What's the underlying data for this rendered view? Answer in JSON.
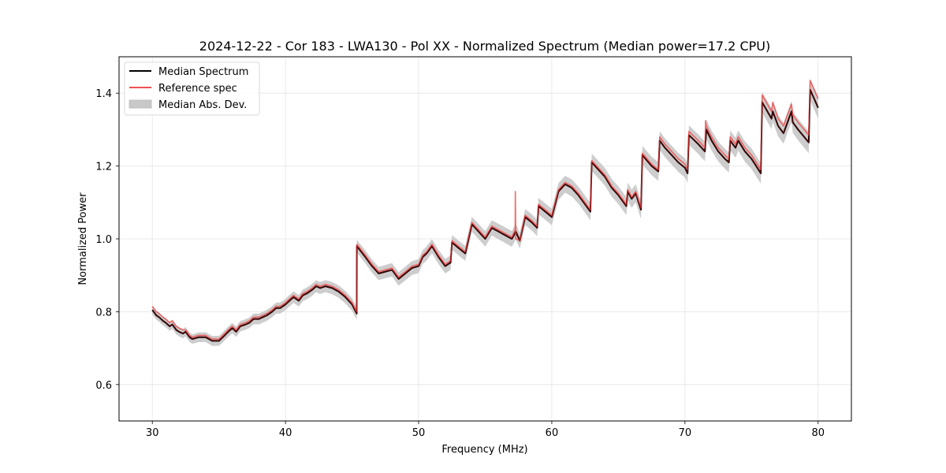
{
  "chart_data": {
    "type": "line",
    "title": "2024-12-22 - Cor 183 - LWA130 - Pol XX - Normalized Spectrum (Median power=17.2 CPU)",
    "xlabel": "Frequency (MHz)",
    "ylabel": "Normalized Power",
    "xlim": [
      27.5,
      82.5
    ],
    "ylim": [
      0.5,
      1.5
    ],
    "xticks": [
      30,
      40,
      50,
      60,
      70,
      80
    ],
    "xtick_labels": [
      "30",
      "40",
      "50",
      "60",
      "70",
      "80"
    ],
    "yticks": [
      0.6,
      0.8,
      1.0,
      1.2,
      1.4
    ],
    "ytick_labels": [
      "0.6",
      "0.8",
      "1.0",
      "1.2",
      "1.4"
    ],
    "grid": true,
    "legend_position": "top-left",
    "legend": [
      {
        "label": "Median Spectrum",
        "kind": "line",
        "color": "#000000"
      },
      {
        "label": "Reference spec",
        "kind": "line",
        "color": "#f05050"
      },
      {
        "label": "Median Abs. Dev.",
        "kind": "band",
        "color": "#c8c8c8"
      }
    ],
    "series": [
      {
        "name": "Median Spectrum",
        "color": "#000000",
        "x": [
          30.0,
          30.3,
          30.5,
          30.8,
          31.0,
          31.3,
          31.5,
          31.8,
          32.0,
          32.3,
          32.5,
          32.8,
          33.0,
          33.5,
          34.0,
          34.5,
          34.8,
          35.0,
          35.3,
          35.7,
          36.0,
          36.3,
          36.6,
          37.0,
          37.3,
          37.6,
          38.0,
          38.3,
          38.6,
          39.0,
          39.3,
          39.6,
          40.0,
          40.3,
          40.6,
          41.0,
          41.3,
          41.6,
          42.0,
          42.3,
          42.6,
          43.0,
          43.5,
          44.0,
          44.5,
          45.0,
          45.35,
          45.36,
          46.0,
          46.5,
          47.0,
          47.5,
          48.0,
          48.5,
          49.0,
          49.5,
          50.0,
          50.3,
          50.6,
          51.0,
          51.5,
          52.0,
          52.4,
          52.5,
          53.0,
          53.5,
          54.0,
          54.5,
          55.0,
          55.5,
          56.0,
          56.5,
          57.0,
          57.3,
          57.6,
          58.0,
          58.5,
          58.9,
          59.0,
          59.5,
          60.0,
          60.5,
          61.0,
          61.5,
          62.0,
          62.9,
          63.0,
          63.5,
          64.0,
          64.5,
          65.0,
          65.6,
          65.7,
          66.0,
          66.3,
          66.7,
          66.8,
          67.5,
          68.0,
          68.1,
          68.5,
          69.0,
          69.5,
          70.0,
          70.2,
          70.3,
          71.0,
          71.5,
          71.6,
          72.0,
          72.5,
          73.0,
          73.3,
          73.4,
          73.8,
          74.0,
          74.5,
          75.0,
          75.7,
          75.8,
          76.5,
          76.6,
          77.0,
          77.4,
          78.0,
          78.1,
          78.5,
          79.3,
          79.4,
          80.0
        ],
        "y": [
          0.805,
          0.79,
          0.785,
          0.775,
          0.77,
          0.76,
          0.765,
          0.75,
          0.745,
          0.74,
          0.745,
          0.73,
          0.725,
          0.73,
          0.73,
          0.72,
          0.72,
          0.72,
          0.73,
          0.745,
          0.755,
          0.745,
          0.76,
          0.765,
          0.77,
          0.78,
          0.78,
          0.785,
          0.79,
          0.8,
          0.81,
          0.81,
          0.82,
          0.83,
          0.84,
          0.83,
          0.845,
          0.85,
          0.86,
          0.87,
          0.865,
          0.87,
          0.865,
          0.855,
          0.84,
          0.82,
          0.795,
          0.98,
          0.95,
          0.925,
          0.905,
          0.91,
          0.915,
          0.89,
          0.905,
          0.92,
          0.925,
          0.95,
          0.96,
          0.98,
          0.95,
          0.925,
          0.935,
          0.99,
          0.975,
          0.96,
          1.04,
          1.02,
          1.0,
          1.03,
          1.02,
          1.01,
          1.0,
          1.02,
          0.995,
          1.06,
          1.045,
          1.03,
          1.09,
          1.075,
          1.06,
          1.13,
          1.15,
          1.14,
          1.12,
          1.075,
          1.21,
          1.19,
          1.17,
          1.14,
          1.12,
          1.09,
          1.13,
          1.11,
          1.125,
          1.08,
          1.23,
          1.2,
          1.185,
          1.27,
          1.25,
          1.23,
          1.21,
          1.195,
          1.18,
          1.285,
          1.26,
          1.24,
          1.3,
          1.27,
          1.24,
          1.22,
          1.21,
          1.27,
          1.25,
          1.27,
          1.24,
          1.22,
          1.18,
          1.375,
          1.33,
          1.35,
          1.31,
          1.29,
          1.35,
          1.32,
          1.3,
          1.265,
          1.41,
          1.36
        ]
      },
      {
        "name": "Reference spec",
        "color": "#f05050",
        "x": [
          30.0,
          30.3,
          30.5,
          30.8,
          31.0,
          31.3,
          31.5,
          31.8,
          32.0,
          32.3,
          32.5,
          32.8,
          33.0,
          33.5,
          34.0,
          34.5,
          34.8,
          35.0,
          35.3,
          35.7,
          36.0,
          36.3,
          36.6,
          37.0,
          37.3,
          37.6,
          38.0,
          38.3,
          38.6,
          39.0,
          39.3,
          39.6,
          40.0,
          40.3,
          40.6,
          41.0,
          41.3,
          41.6,
          42.0,
          42.3,
          42.6,
          43.0,
          43.5,
          44.0,
          44.5,
          45.0,
          45.35,
          45.36,
          46.0,
          46.5,
          47.0,
          47.5,
          48.0,
          48.5,
          49.0,
          49.5,
          50.0,
          50.3,
          50.6,
          51.0,
          51.5,
          52.0,
          52.4,
          52.5,
          53.0,
          53.5,
          54.0,
          54.5,
          55.0,
          55.5,
          56.0,
          56.5,
          57.0,
          57.25,
          57.26,
          57.3,
          57.6,
          58.0,
          58.5,
          58.9,
          59.0,
          59.5,
          60.0,
          60.5,
          61.0,
          61.5,
          62.0,
          62.9,
          63.0,
          63.5,
          64.0,
          64.5,
          65.0,
          65.6,
          65.7,
          66.0,
          66.3,
          66.7,
          66.8,
          67.5,
          68.0,
          68.1,
          68.5,
          69.0,
          69.5,
          70.0,
          70.2,
          70.3,
          71.0,
          71.5,
          71.55,
          71.6,
          72.0,
          72.5,
          73.0,
          73.3,
          73.4,
          73.8,
          74.0,
          74.5,
          75.0,
          75.7,
          75.8,
          76.5,
          76.6,
          77.0,
          77.4,
          78.0,
          78.1,
          78.5,
          79.3,
          79.4,
          80.0
        ],
        "y": [
          0.815,
          0.8,
          0.795,
          0.785,
          0.78,
          0.77,
          0.775,
          0.76,
          0.755,
          0.75,
          0.75,
          0.735,
          0.73,
          0.735,
          0.735,
          0.725,
          0.725,
          0.725,
          0.735,
          0.75,
          0.76,
          0.75,
          0.765,
          0.77,
          0.775,
          0.785,
          0.785,
          0.79,
          0.795,
          0.805,
          0.815,
          0.815,
          0.825,
          0.835,
          0.845,
          0.835,
          0.85,
          0.855,
          0.865,
          0.875,
          0.87,
          0.875,
          0.87,
          0.86,
          0.845,
          0.825,
          0.8,
          0.985,
          0.955,
          0.93,
          0.91,
          0.915,
          0.92,
          0.895,
          0.91,
          0.925,
          0.93,
          0.955,
          0.965,
          0.985,
          0.955,
          0.93,
          0.94,
          0.995,
          0.98,
          0.965,
          1.045,
          1.025,
          1.005,
          1.035,
          1.025,
          1.015,
          1.005,
          1.025,
          1.13,
          1.0,
          0.995,
          1.065,
          1.05,
          1.035,
          1.095,
          1.08,
          1.065,
          1.135,
          1.155,
          1.145,
          1.125,
          1.08,
          1.215,
          1.195,
          1.175,
          1.145,
          1.125,
          1.095,
          1.135,
          1.115,
          1.13,
          1.085,
          1.235,
          1.205,
          1.19,
          1.28,
          1.26,
          1.24,
          1.22,
          1.205,
          1.19,
          1.295,
          1.27,
          1.25,
          1.325,
          1.31,
          1.28,
          1.25,
          1.23,
          1.22,
          1.28,
          1.26,
          1.28,
          1.25,
          1.23,
          1.19,
          1.395,
          1.35,
          1.375,
          1.33,
          1.31,
          1.37,
          1.34,
          1.32,
          1.285,
          1.435,
          1.385
        ]
      }
    ],
    "band": {
      "name": "Median Abs. Dev.",
      "color": "#c8c8c8",
      "half_width_low_freq": 0.012,
      "half_width_high_freq": 0.03
    }
  }
}
